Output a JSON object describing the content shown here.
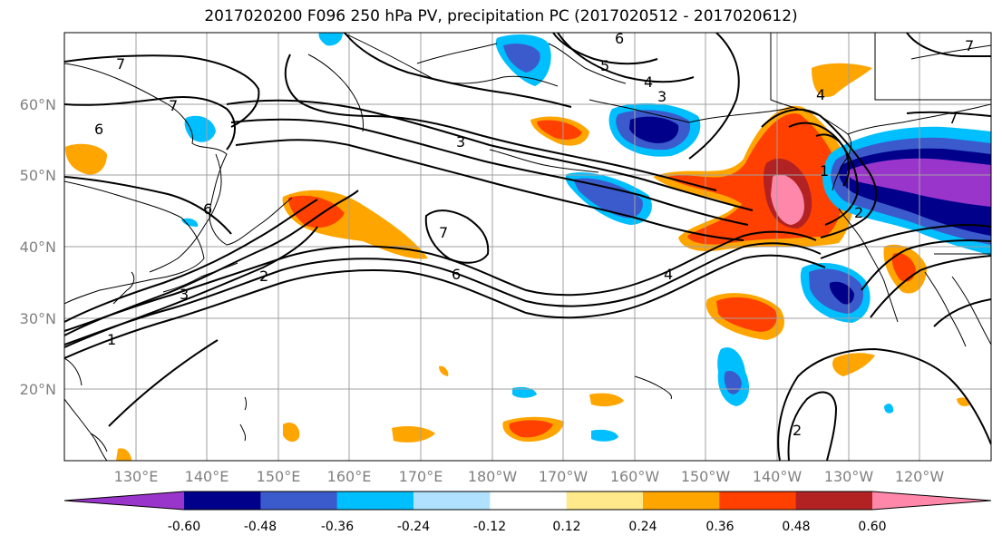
{
  "title": "2017020200 F096 250 hPa PV, precipitation PC (2017020512 - 2017020612)",
  "lat_labels": [
    "60°N",
    "50°N",
    "40°N",
    "30°N",
    "20°N"
  ],
  "lon_labels": [
    "130°E",
    "140°E",
    "150°E",
    "160°E",
    "170°E",
    "180°W",
    "170°W",
    "160°W",
    "150°W",
    "140°W",
    "130°W",
    "120°W"
  ],
  "colorbar": {
    "colors": [
      "#9a35cc",
      "#00008b",
      "#3b5bcc",
      "#00bfff",
      "#b0e2ff",
      "#ffffff",
      "#ffe98a",
      "#ffa500",
      "#ff4000",
      "#b22222",
      "#ff88aa"
    ],
    "tick_labels": [
      "-0.60",
      "-0.48",
      "-0.36",
      "-0.24",
      "-0.12",
      "0.12",
      "0.24",
      "0.36",
      "0.48",
      "0.60"
    ]
  },
  "contour_labels": {
    "c7a": "7",
    "c6a": "6",
    "c7b": "7",
    "c3a": "3",
    "c2a": "2",
    "c1a": "1",
    "c6b": "6",
    "c5a": "5",
    "c4a": "4",
    "c3b": "3",
    "c3c": "3",
    "c7c": "7",
    "c6c": "6",
    "c4b": "4",
    "c4c": "4",
    "c7d": "7",
    "c1b": "1",
    "c2b": "2",
    "c7e": "7",
    "c6d": "6",
    "c2c": "2"
  }
}
